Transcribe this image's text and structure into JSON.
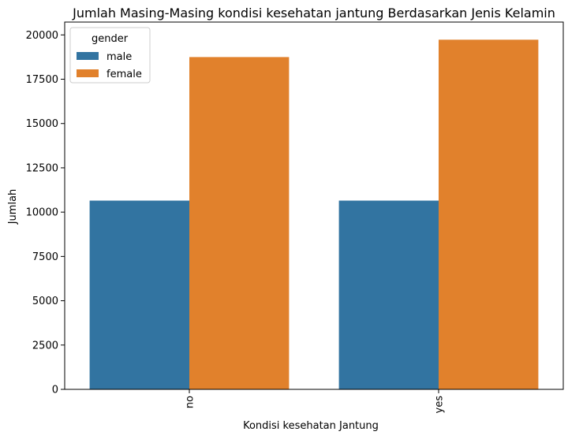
{
  "chart_data": {
    "type": "bar",
    "title": "Jumlah Masing-Masing kondisi kesehatan jantung Berdasarkan Jenis Kelamin",
    "xlabel": "Kondisi kesehatan Jantung",
    "ylabel": "Jumlah",
    "categories": [
      "no",
      "yes"
    ],
    "series": [
      {
        "name": "male",
        "values": [
          10650,
          10650
        ],
        "color": "#3274a1"
      },
      {
        "name": "female",
        "values": [
          18750,
          19730
        ],
        "color": "#e1812c"
      }
    ],
    "ylim": [
      0,
      20725
    ],
    "yticks": [
      0,
      2500,
      5000,
      7500,
      10000,
      12500,
      15000,
      17500,
      20000
    ],
    "grid": false,
    "legend": {
      "title": "gender",
      "placement": "top-left"
    }
  }
}
